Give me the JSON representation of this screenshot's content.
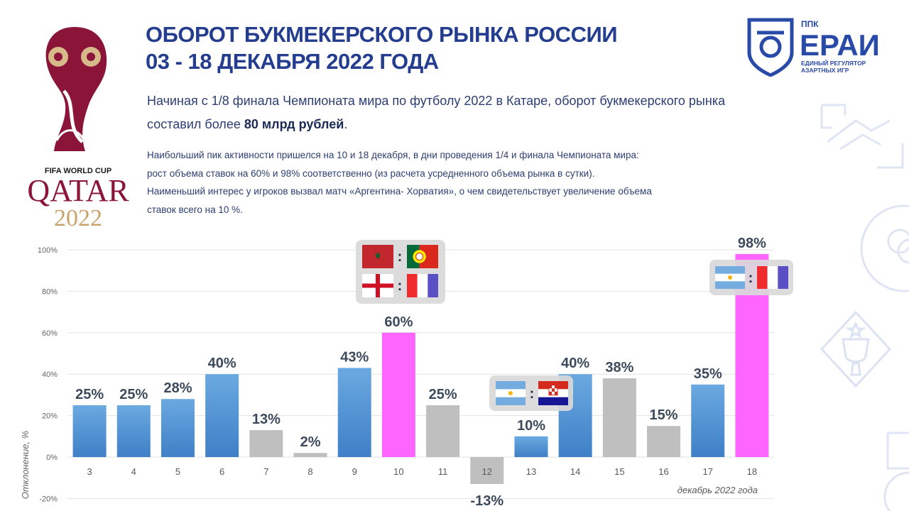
{
  "page": {
    "title_line1": "ОБОРОТ БУКМЕКЕРСКОГО РЫНКА РОССИИ",
    "title_line2": "03 - 18 ДЕКАБРЯ 2022 ГОДА",
    "intro_part1": "Начиная с 1/8 финала Чемпионата мира по футболу 2022 в Катаре, оборот букмекерского рынка",
    "intro_part2": "составил более ",
    "intro_bold": "80 млрд рублей",
    "intro_end": ".",
    "notes": [
      "Наибольший пик активности пришелся на 10 и 18 декабря, в дни проведения 1/4 и финала Чемпионата мира:",
      "рост объема ставок на 60% и 98% соответственно (из расчета усредненного объема рынка в сутки).",
      "Наименьший интерес у игроков вызвал матч «Аргентина- Хорватия», о чем свидетельствует увеличение  объема",
      "ставок всего на 10 %."
    ]
  },
  "logo_left": {
    "fifa_text": "FIFA WORLD CUP",
    "qatar_text": "QATAR",
    "year_text": "2022"
  },
  "brand": {
    "ppk": "ППК",
    "name": "ЕРАИ",
    "subtitle1": "ЕДИНЫЙ РЕГУЛЯТОР",
    "subtitle2": "АЗАРТНЫХ ИГР",
    "color": "#2a4aa8"
  },
  "chart_data": {
    "type": "bar",
    "categories": [
      "3",
      "4",
      "5",
      "6",
      "7",
      "8",
      "9",
      "10",
      "11",
      "12",
      "13",
      "14",
      "15",
      "16",
      "17",
      "18"
    ],
    "values": [
      25,
      25,
      28,
      40,
      13,
      2,
      43,
      60,
      25,
      -13,
      10,
      40,
      38,
      15,
      35,
      98
    ],
    "bar_labels": [
      "25%",
      "25%",
      "28%",
      "40%",
      "13%",
      "2%",
      "43%",
      "60%",
      "25%",
      "-13%",
      "10%",
      "40%",
      "38%",
      "15%",
      "35%",
      "98%"
    ],
    "bar_kind": [
      "blue",
      "blue",
      "blue",
      "blue",
      "gray",
      "gray",
      "blue",
      "pink",
      "gray",
      "gray",
      "blue",
      "blue",
      "gray",
      "gray",
      "blue",
      "pink"
    ],
    "colors": {
      "blue": "#5b9bd5",
      "gray": "#bfbfbf",
      "pink": "#ff66ff"
    },
    "ylim": [
      -20,
      100
    ],
    "yticks": [
      -20,
      0,
      20,
      40,
      60,
      80,
      100
    ],
    "ytick_labels": [
      "-20%",
      "0%",
      "20%",
      "40%",
      "60%",
      "80%",
      "100%"
    ],
    "ylabel": "Отклонение, %",
    "xlabel": "декабрь 2022 года",
    "grid": true,
    "matchups": [
      {
        "day": "10",
        "matches": [
          [
            "morocco",
            "portugal"
          ],
          [
            "england",
            "france"
          ]
        ],
        "separator": ":"
      },
      {
        "day": "13",
        "matches": [
          [
            "argentina",
            "croatia"
          ]
        ],
        "separator": ":"
      },
      {
        "day": "18",
        "matches": [
          [
            "argentina",
            "france"
          ]
        ],
        "separator": ":"
      }
    ]
  }
}
